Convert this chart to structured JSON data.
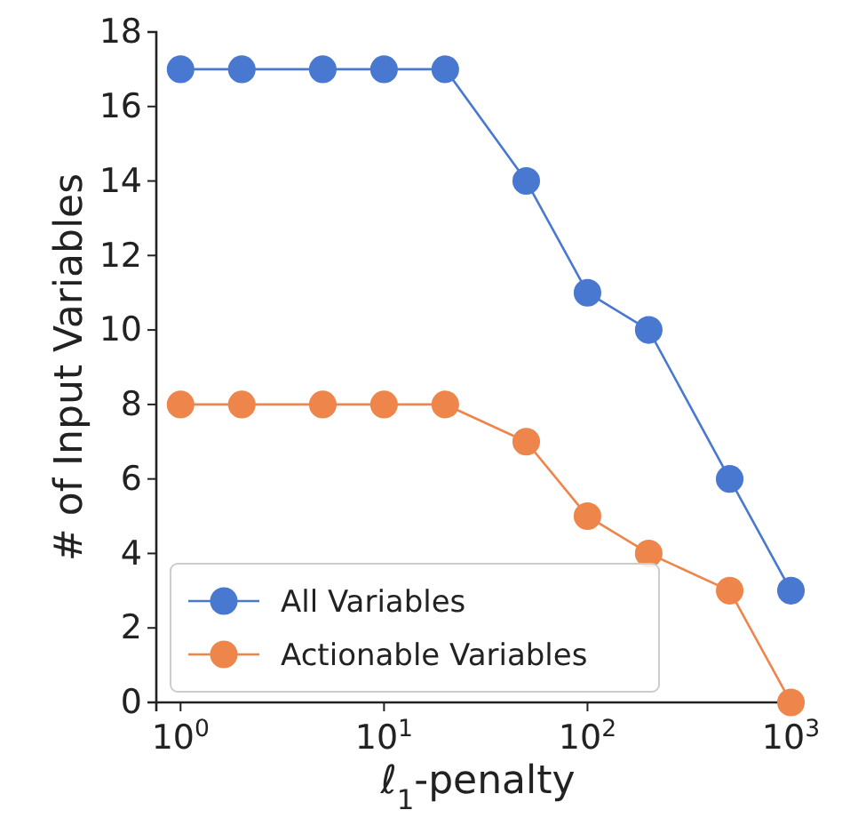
{
  "chart_data": {
    "type": "line",
    "xlabel": "ℓ$_{1}$-penalty",
    "ylabel": "# of Input Variables",
    "x": [
      1,
      2,
      5,
      10,
      20,
      50,
      100,
      200,
      500,
      1000
    ],
    "series": [
      {
        "name": "All Variables",
        "color": "#4878d0",
        "values": [
          17,
          17,
          17,
          17,
          17,
          14,
          11,
          10,
          6,
          3
        ]
      },
      {
        "name": "Actionable Variables",
        "color": "#ee854a",
        "values": [
          8,
          8,
          8,
          8,
          8,
          7,
          5,
          4,
          3,
          0
        ]
      }
    ],
    "log": "x",
    "xlim": [
      0.76,
      1100
    ],
    "xticks": [
      {
        "value": 1,
        "label": "10$^{0}$"
      },
      {
        "value": 10,
        "label": "10$^{1}$"
      },
      {
        "value": 100,
        "label": "10$^{2}$"
      },
      {
        "value": 1000,
        "label": "10$^{3}$"
      }
    ],
    "ylim": [
      0,
      18
    ],
    "yticks": [
      0,
      2,
      4,
      6,
      8,
      10,
      12,
      14,
      16,
      18
    ],
    "marker": "circle",
    "line_style": "solid",
    "legend": "bottom left",
    "grid": false
  }
}
